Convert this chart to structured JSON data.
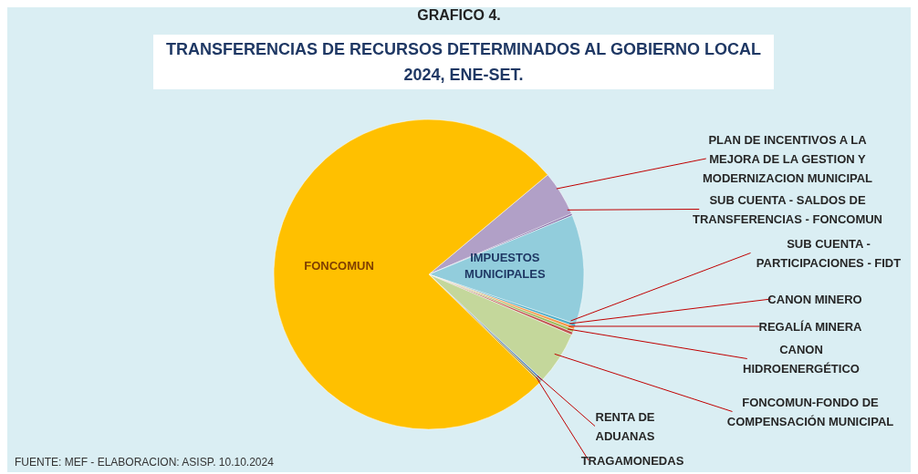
{
  "chart_data": {
    "type": "pie",
    "title": "TRANSFERENCIAS DE RECURSOS DETERMINADOS AL GOBIERNO LOCAL 2024, ENE-SET.",
    "categories": [
      "PLAN DE INCENTIVOS A LA MEJORA DE LA GESTION Y MODERNIZACION MUNICIPAL",
      "SUB CUENTA - SALDOS DE TRANSFERENCIAS - FONCOMUN",
      "IMPUESTOS MUNICIPALES",
      "SUB CUENTA - PARTICIPACIONES - FIDT",
      "CANON MINERO",
      "REGALÍA MINERA",
      "CANON HIDROENERGÉTICO",
      "FONCOMUN-FONDO DE COMPENSACIÓN MUNICIPAL",
      "RENTA DE ADUANAS",
      "TRAGAMONEDAS",
      "FONCOMUN"
    ],
    "values": [
      4.7,
      0.2,
      11.4,
      0.3,
      0.3,
      0.3,
      0.3,
      5.5,
      0.2,
      0.2,
      76.6
    ],
    "colors": [
      "#b1a0c7",
      "#8064a2",
      "#92cddc",
      "#4bacc6",
      "#f79646",
      "#9bbb59",
      "#c0504d",
      "#c4d79b",
      "#4f81bd",
      "#948a54",
      "#ffc000"
    ],
    "annotations": [
      "GRAFICO 4.",
      "FUENTE: MEF - ELABORACION: ASISP. 10.10.2024"
    ]
  }
}
